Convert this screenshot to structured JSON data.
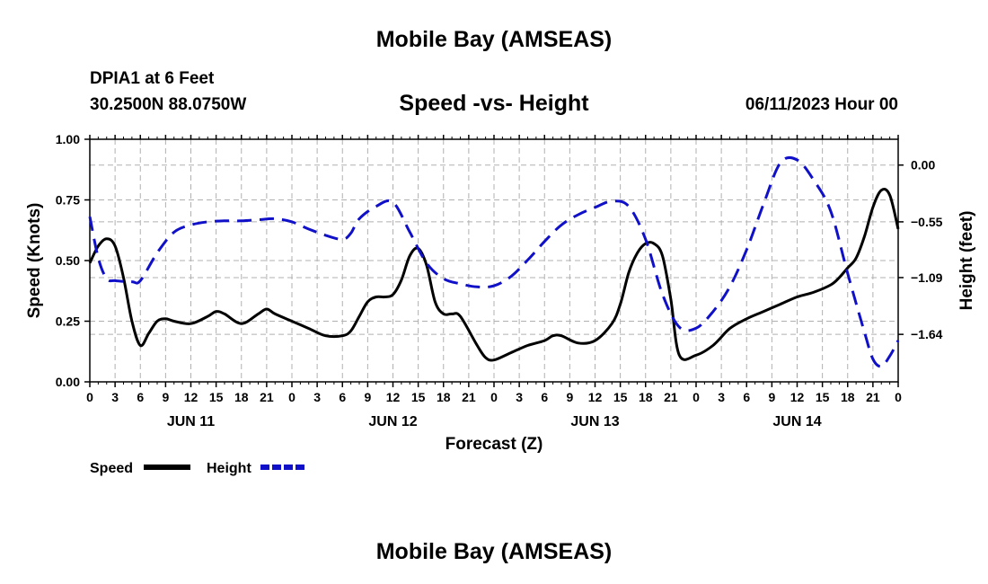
{
  "page": {
    "title": "Mobile Bay (AMSEAS)",
    "station": "DPIA1 at 6 Feet",
    "coords": "30.2500N  88.0750W",
    "subtitle": "Speed -vs- Height",
    "datetime": "06/11/2023 Hour 00",
    "footer_title": "Mobile Bay (AMSEAS)"
  },
  "chart_data": {
    "type": "line",
    "title": "Speed -vs- Height",
    "xlabel": "Forecast (Z)",
    "ylabel": "Speed (Knots)",
    "y2label": "Height (feet)",
    "xlim": [
      0,
      96
    ],
    "ylim": [
      0,
      1.0
    ],
    "y2lim": [
      -2.1,
      0.25
    ],
    "x_tick_labels": [
      "0",
      "3",
      "6",
      "9",
      "12",
      "15",
      "18",
      "21",
      "0",
      "3",
      "6",
      "9",
      "12",
      "15",
      "18",
      "21",
      "0",
      "3",
      "6",
      "9",
      "12",
      "15",
      "18",
      "21",
      "0",
      "3",
      "6",
      "9",
      "12",
      "15",
      "18",
      "21",
      "0"
    ],
    "day_labels": [
      {
        "label": "JUN 11",
        "hour": 12
      },
      {
        "label": "JUN 12",
        "hour": 36
      },
      {
        "label": "JUN 13",
        "hour": 60
      },
      {
        "label": "JUN 14",
        "hour": 84
      }
    ],
    "y_ticks": [
      0.0,
      0.25,
      0.5,
      0.75,
      1.0
    ],
    "y_tick_labels": [
      "0.00",
      "0.25",
      "0.50",
      "0.75",
      "1.00"
    ],
    "y2_ticks": [
      0.0,
      -0.55,
      -1.09,
      -1.64
    ],
    "y2_tick_labels": [
      "0.00",
      "−0.55",
      "−1.09",
      "−1.64"
    ],
    "legend": [
      {
        "name": "Speed",
        "color": "#000000",
        "dash": "solid"
      },
      {
        "name": "Height",
        "color": "#1010c8",
        "dash": "dashed"
      }
    ],
    "series": [
      {
        "name": "Speed",
        "axis": "left",
        "color": "#000000",
        "x": [
          0,
          1,
          2,
          3,
          4,
          5,
          6,
          7,
          8,
          9,
          10,
          12,
          14,
          15,
          16,
          18,
          20,
          21,
          22,
          24,
          26,
          28,
          30,
          31,
          32,
          33,
          34,
          35,
          36,
          37,
          38,
          39,
          40,
          41,
          42,
          43,
          44,
          46,
          47,
          48,
          50,
          52,
          54,
          55,
          56,
          58,
          60,
          62,
          63,
          64,
          65,
          66,
          67,
          68,
          69,
          70,
          72,
          74,
          76,
          78,
          80,
          82,
          84,
          86,
          88,
          89,
          90,
          91,
          92,
          93,
          94,
          95,
          96
        ],
        "values": [
          0.49,
          0.56,
          0.59,
          0.56,
          0.43,
          0.25,
          0.15,
          0.2,
          0.25,
          0.26,
          0.25,
          0.24,
          0.27,
          0.29,
          0.28,
          0.24,
          0.28,
          0.3,
          0.28,
          0.25,
          0.22,
          0.19,
          0.19,
          0.21,
          0.27,
          0.33,
          0.35,
          0.35,
          0.36,
          0.42,
          0.52,
          0.55,
          0.48,
          0.33,
          0.28,
          0.28,
          0.27,
          0.15,
          0.1,
          0.09,
          0.12,
          0.15,
          0.17,
          0.19,
          0.19,
          0.16,
          0.17,
          0.24,
          0.32,
          0.45,
          0.53,
          0.57,
          0.57,
          0.52,
          0.34,
          0.11,
          0.11,
          0.15,
          0.22,
          0.26,
          0.29,
          0.32,
          0.35,
          0.37,
          0.4,
          0.43,
          0.47,
          0.51,
          0.6,
          0.72,
          0.79,
          0.77,
          0.63
        ]
      },
      {
        "name": "Height",
        "axis": "right",
        "color": "#1010c8",
        "x": [
          0,
          1,
          2,
          3,
          5,
          6,
          8,
          10,
          12,
          14,
          16,
          18,
          20,
          22,
          24,
          26,
          28,
          30,
          31,
          32,
          34,
          36,
          38,
          40,
          42,
          44,
          46,
          48,
          50,
          52,
          54,
          56,
          58,
          60,
          62,
          64,
          66,
          68,
          70,
          72,
          74,
          76,
          78,
          80,
          82,
          84,
          86,
          88,
          90,
          92,
          93,
          94,
          95,
          96
        ],
        "values": [
          -0.5,
          -0.9,
          -1.1,
          -1.12,
          -1.13,
          -1.12,
          -0.85,
          -0.65,
          -0.58,
          -0.55,
          -0.54,
          -0.54,
          -0.53,
          -0.52,
          -0.55,
          -0.62,
          -0.68,
          -0.72,
          -0.66,
          -0.52,
          -0.4,
          -0.36,
          -0.65,
          -0.95,
          -1.1,
          -1.15,
          -1.18,
          -1.17,
          -1.08,
          -0.92,
          -0.74,
          -0.58,
          -0.48,
          -0.41,
          -0.35,
          -0.4,
          -0.72,
          -1.25,
          -1.57,
          -1.58,
          -1.42,
          -1.18,
          -0.82,
          -0.38,
          0.02,
          0.05,
          -0.15,
          -0.45,
          -1.05,
          -1.62,
          -1.88,
          -1.95,
          -1.85,
          -1.7
        ]
      }
    ]
  }
}
